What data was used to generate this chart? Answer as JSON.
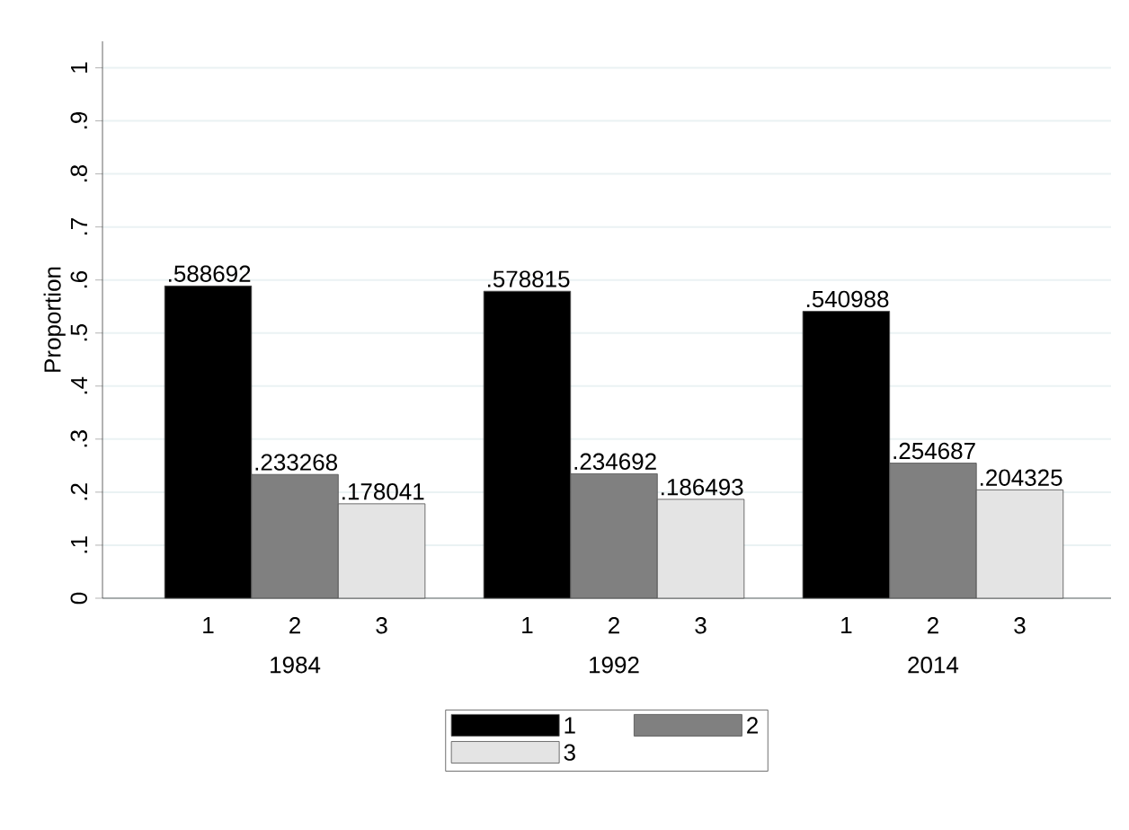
{
  "chart_data": {
    "type": "bar",
    "ylabel": "Proportion",
    "categories": [
      "1984",
      "1992",
      "2014"
    ],
    "series": [
      {
        "name": "1",
        "color": "#000000",
        "values": [
          0.588692,
          0.578815,
          0.540988
        ],
        "value_labels": [
          ".588692",
          ".578815",
          ".540988"
        ]
      },
      {
        "name": "2",
        "color": "#808080",
        "values": [
          0.233268,
          0.234692,
          0.254687
        ],
        "value_labels": [
          ".233268",
          ".234692",
          ".254687"
        ]
      },
      {
        "name": "3",
        "color": "#e4e4e4",
        "values": [
          0.178041,
          0.186493,
          0.204325
        ],
        "value_labels": [
          ".178041",
          ".186493",
          ".204325"
        ]
      }
    ],
    "ylim": [
      0,
      1.05
    ],
    "yticks": [
      0,
      {
        "value": 0.1,
        "label": ".1"
      },
      {
        "value": 0.2,
        "label": ".2"
      },
      {
        "value": 0.3,
        "label": ".3"
      },
      {
        "value": 0.4,
        "label": ".4"
      },
      {
        "value": 0.5,
        "label": ".5"
      },
      {
        "value": 0.6,
        "label": ".6"
      },
      {
        "value": 0.7,
        "label": ".7"
      },
      {
        "value": 0.8,
        "label": ".8"
      },
      {
        "value": 0.9,
        "label": ".9"
      },
      1
    ],
    "grid": "y",
    "legend": "bottom"
  }
}
